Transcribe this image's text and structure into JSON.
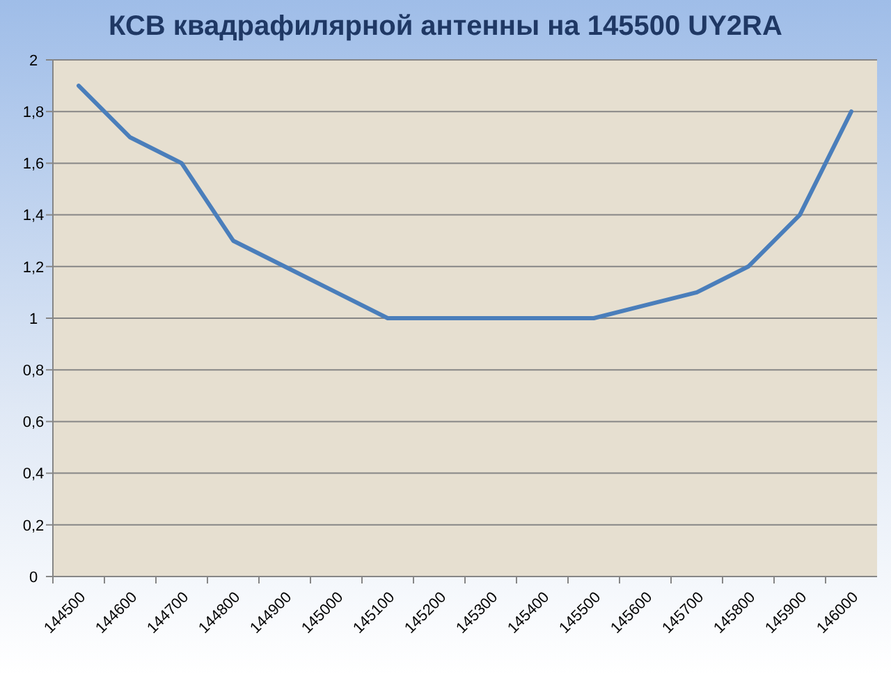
{
  "chart_data": {
    "type": "line",
    "title": "КСВ квадрафилярной антенны на 145500  UY2RA",
    "categories": [
      "144500",
      "144600",
      "144700",
      "144800",
      "144900",
      "145000",
      "145100",
      "145200",
      "145300",
      "145400",
      "145500",
      "145600",
      "145700",
      "145800",
      "145900",
      "146000"
    ],
    "series": [
      {
        "color": "#4a7ebb",
        "values": [
          1.9,
          1.7,
          1.6,
          1.3,
          1.2,
          1.1,
          1,
          1,
          1,
          1,
          1,
          1.05,
          1.1,
          1.2,
          1.4,
          1.8
        ]
      }
    ],
    "ylim": [
      0,
      2
    ],
    "yticks": [
      0,
      {
        "value": 0.2,
        "label": "0,2"
      },
      {
        "value": 0.4,
        "label": "0,4"
      },
      {
        "value": 0.6,
        "label": "0,6"
      },
      {
        "value": 0.8,
        "label": "0,8"
      },
      1,
      {
        "value": 1.2,
        "label": "1,2"
      },
      {
        "value": 1.4,
        "label": "1,4"
      },
      {
        "value": 1.6,
        "label": "1,6"
      },
      {
        "value": 1.8,
        "label": "1,8"
      },
      2
    ],
    "grid": "y",
    "marker": "none",
    "line_style": "solid"
  }
}
